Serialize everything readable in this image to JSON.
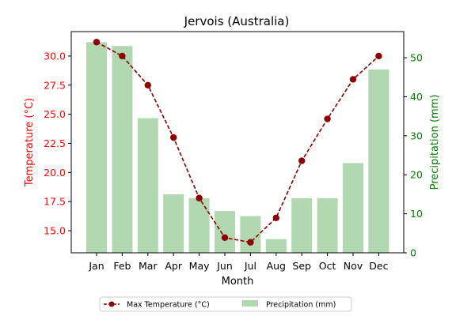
{
  "chart_data": {
    "type": "bar+line",
    "title": "Jervois (Australia)",
    "xlabel": "Month",
    "ylabel_left": "Temperature (°C)",
    "ylabel_right": "Precipitation (mm)",
    "categories": [
      "Jan",
      "Feb",
      "Mar",
      "Apr",
      "May",
      "Jun",
      "Jul",
      "Aug",
      "Sep",
      "Oct",
      "Nov",
      "Dec"
    ],
    "temperature": {
      "name": "Max Temperature (°C)",
      "color": "#8b0000",
      "values": [
        31.2,
        30.0,
        27.5,
        23.0,
        17.8,
        14.4,
        14.0,
        16.1,
        21.0,
        24.6,
        28.0,
        30.0
      ],
      "ylim": [
        13.1,
        32.1
      ],
      "ticks": [
        15.0,
        17.5,
        20.0,
        22.5,
        25.0,
        27.5,
        30.0
      ],
      "tick_labels": [
        "15.0",
        "17.5",
        "20.0",
        "22.5",
        "25.0",
        "27.5",
        "30.0"
      ],
      "axis_color": "#ff0000"
    },
    "precipitation": {
      "name": "Precipitation (mm)",
      "color": "#b2d8b2",
      "values": [
        54,
        53,
        34.5,
        15,
        14,
        10.7,
        9.4,
        3.5,
        14,
        14,
        23,
        47
      ],
      "ylim": [
        0,
        56.7
      ],
      "ticks": [
        0,
        10,
        20,
        30,
        40,
        50
      ],
      "tick_labels": [
        "0",
        "10",
        "20",
        "30",
        "40",
        "50"
      ],
      "axis_color": "#008000"
    },
    "legend": {
      "position": "bottom-center"
    }
  }
}
